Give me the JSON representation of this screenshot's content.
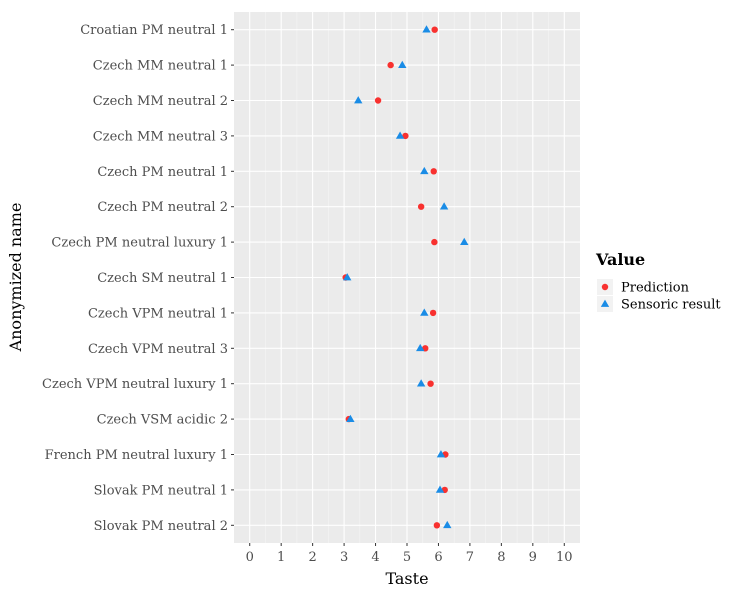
{
  "chart_data": {
    "type": "scatter",
    "title": "",
    "xlabel": "Taste",
    "ylabel": "Anonymized name",
    "xlim": [
      -0.5,
      10.5
    ],
    "xticks": [
      0,
      1,
      2,
      3,
      4,
      5,
      6,
      7,
      8,
      9,
      10
    ],
    "grid": true,
    "legend_title": "Value",
    "legend_position": "right",
    "categories": [
      "Croatian PM neutral 1",
      "Czech MM neutral 1",
      "Czech MM neutral 2",
      "Czech MM neutral 3",
      "Czech PM neutral 1",
      "Czech PM neutral 2",
      "Czech PM neutral luxury 1",
      "Czech SM neutral 1",
      "Czech VPM neutral 1",
      "Czech VPM neutral 3",
      "Czech VPM neutral luxury 1",
      "Czech VSM acidic 2",
      "French PM neutral luxury 1",
      "Slovak PM neutral 1",
      "Slovak PM neutral 2"
    ],
    "series": [
      {
        "name": "Prediction",
        "marker": "circle",
        "color": "#F8312F",
        "values": [
          5.88,
          4.48,
          4.08,
          4.95,
          5.85,
          5.45,
          5.87,
          3.05,
          5.83,
          5.58,
          5.75,
          3.15,
          6.22,
          6.2,
          5.95
        ]
      },
      {
        "name": "Sensoric result",
        "marker": "triangle",
        "color": "#1A8CE6",
        "values": [
          5.62,
          4.85,
          3.45,
          4.78,
          5.55,
          6.18,
          6.82,
          3.1,
          5.55,
          5.42,
          5.45,
          3.2,
          6.08,
          6.05,
          6.28
        ]
      }
    ]
  }
}
